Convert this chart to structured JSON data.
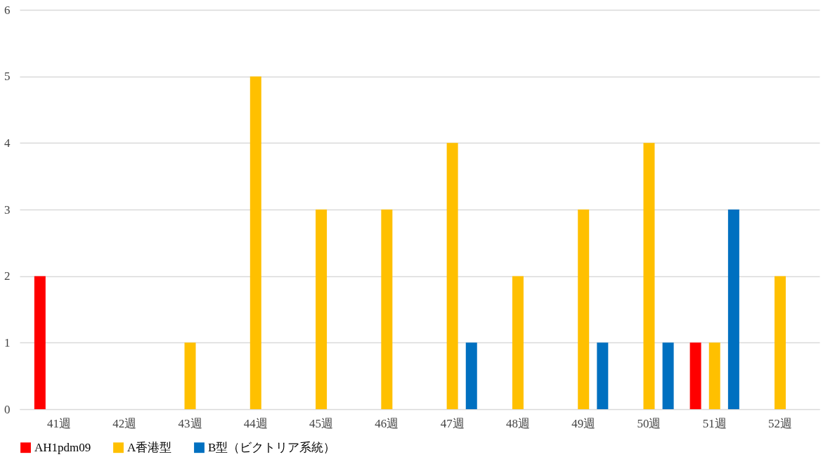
{
  "chart_data": {
    "type": "bar",
    "categories": [
      "41週",
      "42週",
      "43週",
      "44週",
      "45週",
      "46週",
      "47週",
      "48週",
      "49週",
      "50週",
      "51週",
      "52週"
    ],
    "series": [
      {
        "name": "AH1pdm09",
        "color": "#ff0000",
        "values": [
          2,
          0,
          0,
          0,
          0,
          0,
          0,
          0,
          0,
          0,
          1,
          0
        ]
      },
      {
        "name": "A香港型",
        "color": "#ffc000",
        "values": [
          0,
          0,
          1,
          5,
          3,
          3,
          4,
          2,
          3,
          4,
          1,
          2
        ]
      },
      {
        "name": "B型（ビクトリア系統）",
        "color": "#0070c0",
        "values": [
          0,
          0,
          0,
          0,
          0,
          0,
          1,
          0,
          1,
          1,
          3,
          0
        ]
      }
    ],
    "ylim": [
      0,
      6
    ],
    "yticks": [
      0,
      1,
      2,
      3,
      4,
      5,
      6
    ],
    "grid": "y",
    "legend": "bottom"
  }
}
